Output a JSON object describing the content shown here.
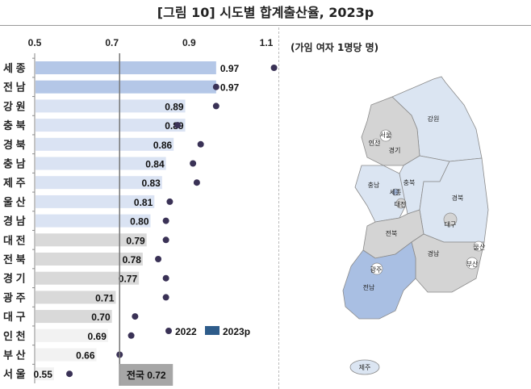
{
  "title": "[그림 10] 시도별 합계출산율, 2023p",
  "map_unit": "(가임 여자 1명당 명)",
  "colors": {
    "top_bar": "#b4c7e7",
    "above_avg_bar": "#dae3f3",
    "mid_bar": "#d9d9d9",
    "low_bar": "#f2f2f2",
    "dot": "#3a3256",
    "national_box": "#a6a6a6",
    "legend_2023": "#2e5c8a"
  },
  "chart_data": {
    "type": "bar",
    "orientation": "horizontal",
    "categories": [
      "세 종",
      "전 남",
      "강 원",
      "충 북",
      "경 북",
      "충 남",
      "제 주",
      "울 산",
      "경 남",
      "대 전",
      "전 북",
      "경 기",
      "광 주",
      "대 구",
      "인 천",
      "부 산",
      "서 울"
    ],
    "series": [
      {
        "name": "2023p",
        "type": "bar",
        "values": [
          0.97,
          0.97,
          0.89,
          0.89,
          0.86,
          0.84,
          0.83,
          0.81,
          0.8,
          0.79,
          0.78,
          0.77,
          0.71,
          0.7,
          0.69,
          0.66,
          0.55
        ]
      },
      {
        "name": "2022",
        "type": "dot",
        "values": [
          1.12,
          0.97,
          0.97,
          0.87,
          0.93,
          0.91,
          0.92,
          0.85,
          0.84,
          0.84,
          0.82,
          0.84,
          0.84,
          0.76,
          0.75,
          0.72,
          0.59
        ]
      }
    ],
    "bar_color_groups": [
      "top",
      "top",
      "above",
      "above",
      "above",
      "above",
      "above",
      "above",
      "above",
      "mid",
      "mid",
      "mid",
      "mid",
      "mid",
      "low",
      "low",
      "low"
    ],
    "xlim": [
      0.5,
      1.1
    ],
    "xticks": [
      "0.5",
      "0.7",
      "0.9",
      "1.1"
    ],
    "reference_line": {
      "value": 0.72,
      "label": "전국 0.72"
    },
    "legend": {
      "items": [
        "2022",
        "2023p"
      ],
      "placement": "bottom-right"
    }
  },
  "map": {
    "regions": [
      {
        "name": "강원",
        "group": "above"
      },
      {
        "name": "경기",
        "group": "below"
      },
      {
        "name": "충남",
        "group": "above"
      },
      {
        "name": "충북",
        "group": "above"
      },
      {
        "name": "경북",
        "group": "above"
      },
      {
        "name": "전북",
        "group": "below"
      },
      {
        "name": "경남",
        "group": "below"
      },
      {
        "name": "전남",
        "group": "top"
      },
      {
        "name": "제주",
        "group": "above"
      }
    ],
    "labels": [
      "강원",
      "서울",
      "인천",
      "경기",
      "충남",
      "충북",
      "세종",
      "대전",
      "경북",
      "대구",
      "전북",
      "울산",
      "경남",
      "부산",
      "광주",
      "전남",
      "제주"
    ]
  }
}
